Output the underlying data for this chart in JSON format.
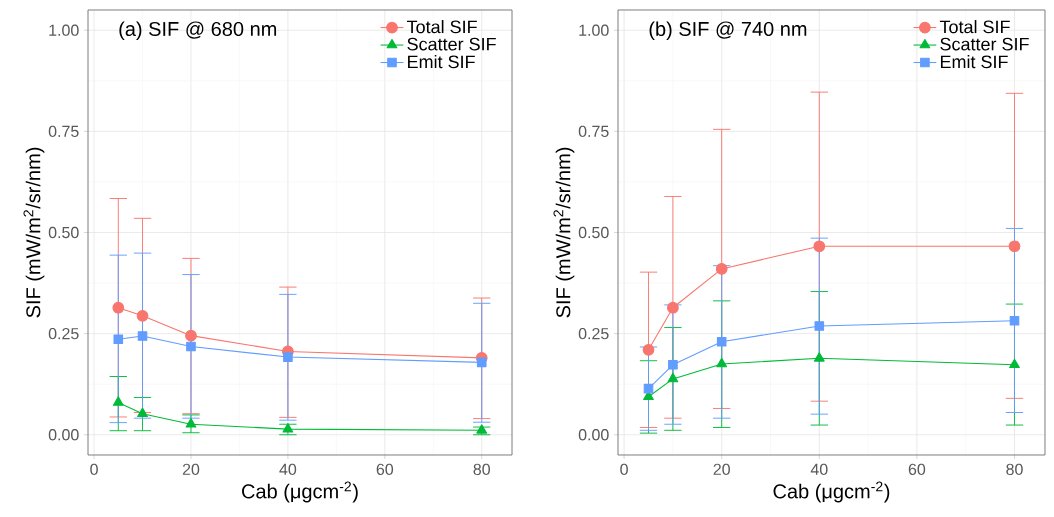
{
  "chart_data": [
    {
      "type": "line",
      "title": "(a) SIF @ 680 nm",
      "xlabel": "Cab (μgcm$^{-2}$)",
      "ylabel": "SIF (mW/m$^{2}$/sr/nm)",
      "x": [
        5,
        10,
        20,
        40,
        80
      ],
      "series": [
        {
          "name": "Total SIF",
          "color": "#f8766d",
          "marker": "circle",
          "values": [
            0.314,
            0.294,
            0.245,
            0.206,
            0.19
          ],
          "errors": [
            [
              0.044,
              0.584
            ],
            [
              0.055,
              0.535
            ],
            [
              0.052,
              0.436
            ],
            [
              0.043,
              0.365
            ],
            [
              0.04,
              0.338
            ]
          ]
        },
        {
          "name": "Scatter SIF",
          "color": "#00ba38",
          "marker": "triangle",
          "values": [
            0.08,
            0.052,
            0.026,
            0.014,
            0.011
          ],
          "errors": [
            [
              0.01,
              0.144
            ],
            [
              0.01,
              0.092
            ],
            [
              0.005,
              0.049
            ],
            [
              0.0,
              0.026
            ],
            [
              0.0,
              0.019
            ]
          ]
        },
        {
          "name": "Emit SIF",
          "color": "#619cff",
          "marker": "square",
          "values": [
            0.236,
            0.244,
            0.218,
            0.192,
            0.179
          ],
          "errors": [
            [
              0.03,
              0.444
            ],
            [
              0.041,
              0.449
            ],
            [
              0.041,
              0.396
            ],
            [
              0.036,
              0.347
            ],
            [
              0.031,
              0.325
            ]
          ]
        }
      ],
      "xlim": [
        -1.25,
        86.25
      ],
      "ylim": [
        -0.05,
        1.05
      ],
      "xticks": [
        0,
        20,
        40,
        60,
        80
      ],
      "yticks": [
        {
          "value": 0,
          "label": "0.00"
        },
        {
          "value": 0.25,
          "label": "0.25"
        },
        {
          "value": 0.5,
          "label": "0.50"
        },
        {
          "value": 0.75,
          "label": "0.75"
        },
        {
          "value": 1,
          "label": "1.00"
        }
      ],
      "grid": true,
      "legend": "top right",
      "line_style": "solid"
    },
    {
      "type": "line",
      "title": "(b) SIF @ 740 nm",
      "xlabel": "Cab (μgcm$^{-2}$)",
      "ylabel": "SIF (mW/m$^{2}$/sr/nm)",
      "x": [
        5,
        10,
        20,
        40,
        80
      ],
      "series": [
        {
          "name": "Total SIF",
          "color": "#f8766d",
          "marker": "circle",
          "values": [
            0.21,
            0.314,
            0.41,
            0.466,
            0.466
          ],
          "errors": [
            [
              0.018,
              0.402
            ],
            [
              0.041,
              0.589
            ],
            [
              0.065,
              0.755
            ],
            [
              0.083,
              0.847
            ],
            [
              0.09,
              0.844
            ]
          ]
        },
        {
          "name": "Scatter SIF",
          "color": "#00ba38",
          "marker": "triangle",
          "values": [
            0.094,
            0.138,
            0.175,
            0.189,
            0.173
          ],
          "errors": [
            [
              0.004,
              0.183
            ],
            [
              0.011,
              0.265
            ],
            [
              0.018,
              0.331
            ],
            [
              0.024,
              0.354
            ],
            [
              0.024,
              0.323
            ]
          ]
        },
        {
          "name": "Emit SIF",
          "color": "#619cff",
          "marker": "square",
          "values": [
            0.114,
            0.173,
            0.23,
            0.269,
            0.282
          ],
          "errors": [
            [
              0.011,
              0.217
            ],
            [
              0.026,
              0.321
            ],
            [
              0.041,
              0.418
            ],
            [
              0.051,
              0.486
            ],
            [
              0.055,
              0.51
            ]
          ]
        }
      ],
      "xlim": [
        -1.25,
        86.25
      ],
      "ylim": [
        -0.05,
        1.05
      ],
      "xticks": [
        0,
        20,
        40,
        60,
        80
      ],
      "yticks": [
        {
          "value": 0,
          "label": "0.00"
        },
        {
          "value": 0.25,
          "label": "0.25"
        },
        {
          "value": 0.5,
          "label": "0.50"
        },
        {
          "value": 0.75,
          "label": "0.75"
        },
        {
          "value": 1,
          "label": "1.00"
        }
      ],
      "grid": true,
      "legend": "top right",
      "line_style": "solid"
    }
  ]
}
